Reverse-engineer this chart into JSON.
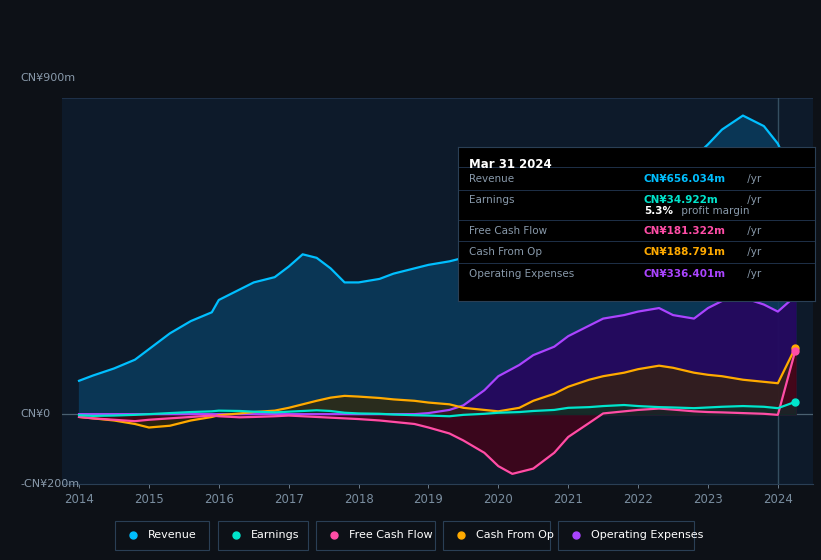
{
  "bg_color": "#0d1117",
  "plot_bg_color": "#0d1a2a",
  "grid_color": "#1e3048",
  "ylabel_top": "CN¥900m",
  "ylabel_zero": "CN¥0",
  "ylabel_bottom": "-CN¥200m",
  "ylim": [
    -200,
    900
  ],
  "xlim": [
    2013.75,
    2024.5
  ],
  "years": [
    2014,
    2015,
    2016,
    2017,
    2018,
    2019,
    2020,
    2021,
    2022,
    2023,
    2024
  ],
  "revenue_x": [
    2014.0,
    2014.2,
    2014.5,
    2014.8,
    2015.0,
    2015.3,
    2015.6,
    2015.9,
    2016.0,
    2016.3,
    2016.5,
    2016.8,
    2017.0,
    2017.2,
    2017.4,
    2017.6,
    2017.8,
    2018.0,
    2018.3,
    2018.5,
    2018.8,
    2019.0,
    2019.3,
    2019.5,
    2019.8,
    2020.0,
    2020.3,
    2020.5,
    2020.8,
    2021.0,
    2021.3,
    2021.5,
    2021.8,
    2022.0,
    2022.3,
    2022.5,
    2022.8,
    2023.0,
    2023.2,
    2023.5,
    2023.8,
    2024.0,
    2024.25
  ],
  "revenue_y": [
    95,
    110,
    130,
    155,
    185,
    230,
    265,
    290,
    325,
    355,
    375,
    390,
    420,
    455,
    445,
    415,
    375,
    375,
    385,
    400,
    415,
    425,
    435,
    445,
    455,
    470,
    482,
    500,
    520,
    550,
    580,
    610,
    640,
    668,
    690,
    710,
    730,
    768,
    810,
    850,
    820,
    770,
    656
  ],
  "earnings_x": [
    2014.0,
    2014.2,
    2014.5,
    2014.8,
    2015.0,
    2015.3,
    2015.6,
    2015.9,
    2016.0,
    2016.3,
    2016.5,
    2016.8,
    2017.0,
    2017.2,
    2017.4,
    2017.6,
    2017.8,
    2018.0,
    2018.3,
    2018.5,
    2018.8,
    2019.0,
    2019.3,
    2019.5,
    2019.8,
    2020.0,
    2020.3,
    2020.5,
    2020.8,
    2021.0,
    2021.3,
    2021.5,
    2021.8,
    2022.0,
    2022.3,
    2022.5,
    2022.8,
    2023.0,
    2023.2,
    2023.5,
    2023.8,
    2024.0,
    2024.25
  ],
  "earnings_y": [
    -3,
    -5,
    -4,
    -2,
    0,
    3,
    6,
    8,
    10,
    9,
    7,
    5,
    7,
    9,
    11,
    9,
    4,
    2,
    1,
    -1,
    -3,
    -4,
    -6,
    -2,
    1,
    4,
    6,
    9,
    12,
    18,
    20,
    23,
    26,
    23,
    20,
    19,
    17,
    19,
    21,
    23,
    21,
    17,
    35
  ],
  "fcf_x": [
    2014.0,
    2014.2,
    2014.5,
    2014.8,
    2015.0,
    2015.3,
    2015.6,
    2015.9,
    2016.0,
    2016.3,
    2016.5,
    2016.8,
    2017.0,
    2017.2,
    2017.4,
    2017.6,
    2017.8,
    2018.0,
    2018.3,
    2018.5,
    2018.8,
    2019.0,
    2019.3,
    2019.5,
    2019.8,
    2020.0,
    2020.2,
    2020.5,
    2020.8,
    2021.0,
    2021.3,
    2021.5,
    2021.8,
    2022.0,
    2022.3,
    2022.5,
    2022.8,
    2023.0,
    2023.2,
    2023.5,
    2023.8,
    2024.0,
    2024.25
  ],
  "fcf_y": [
    -8,
    -12,
    -16,
    -20,
    -16,
    -12,
    -8,
    -4,
    -6,
    -9,
    -8,
    -6,
    -4,
    -6,
    -8,
    -10,
    -12,
    -14,
    -18,
    -22,
    -28,
    -38,
    -55,
    -75,
    -110,
    -148,
    -170,
    -155,
    -110,
    -65,
    -25,
    2,
    8,
    12,
    16,
    13,
    8,
    6,
    5,
    3,
    1,
    -2,
    181
  ],
  "cfop_x": [
    2014.0,
    2014.2,
    2014.5,
    2014.8,
    2015.0,
    2015.3,
    2015.6,
    2015.9,
    2016.0,
    2016.3,
    2016.5,
    2016.8,
    2017.0,
    2017.2,
    2017.4,
    2017.6,
    2017.8,
    2018.0,
    2018.3,
    2018.5,
    2018.8,
    2019.0,
    2019.3,
    2019.5,
    2019.8,
    2020.0,
    2020.3,
    2020.5,
    2020.8,
    2021.0,
    2021.3,
    2021.5,
    2021.8,
    2022.0,
    2022.3,
    2022.5,
    2022.8,
    2023.0,
    2023.2,
    2023.5,
    2023.8,
    2024.0,
    2024.25
  ],
  "cfop_y": [
    -8,
    -12,
    -18,
    -28,
    -38,
    -33,
    -18,
    -8,
    -3,
    2,
    6,
    10,
    18,
    28,
    38,
    47,
    52,
    50,
    46,
    42,
    38,
    33,
    28,
    18,
    12,
    8,
    18,
    38,
    58,
    78,
    98,
    108,
    118,
    128,
    138,
    132,
    118,
    112,
    108,
    98,
    92,
    88,
    189
  ],
  "opex_x": [
    2014.0,
    2014.2,
    2014.5,
    2014.8,
    2015.0,
    2015.3,
    2015.6,
    2015.9,
    2016.0,
    2016.3,
    2016.5,
    2016.8,
    2017.0,
    2017.2,
    2017.4,
    2017.6,
    2017.8,
    2018.0,
    2018.3,
    2018.5,
    2018.8,
    2019.0,
    2019.3,
    2019.5,
    2019.8,
    2020.0,
    2020.3,
    2020.5,
    2020.8,
    2021.0,
    2021.3,
    2021.5,
    2021.8,
    2022.0,
    2022.3,
    2022.5,
    2022.8,
    2023.0,
    2023.2,
    2023.5,
    2023.8,
    2024.0,
    2024.25
  ],
  "opex_y": [
    0,
    0,
    0,
    0,
    0,
    0,
    0,
    0,
    0,
    0,
    0,
    0,
    0,
    0,
    0,
    0,
    0,
    0,
    0,
    0,
    0,
    3,
    12,
    25,
    68,
    108,
    140,
    168,
    192,
    222,
    252,
    272,
    282,
    292,
    302,
    282,
    272,
    302,
    322,
    332,
    312,
    292,
    336
  ],
  "revenue_color": "#00bfff",
  "earnings_color": "#00e5cc",
  "fcf_color": "#ff4da6",
  "cfop_color": "#ffaa00",
  "opex_color": "#aa44ff",
  "revenue_fill": "#0a3a5c",
  "opex_fill": "#2a0060",
  "cfop_fill": "#3a2800",
  "fcf_fill": "#4a0018",
  "earnings_fill": "#003830",
  "legend_items": [
    {
      "label": "Revenue",
      "color": "#00bfff"
    },
    {
      "label": "Earnings",
      "color": "#00e5cc"
    },
    {
      "label": "Free Cash Flow",
      "color": "#ff4da6"
    },
    {
      "label": "Cash From Op",
      "color": "#ffaa00"
    },
    {
      "label": "Operating Expenses",
      "color": "#aa44ff"
    }
  ],
  "box": {
    "date": "Mar 31 2024",
    "rows": [
      {
        "label": "Revenue",
        "value": "CN¥656.034m",
        "value_color": "#00bfff",
        "suffix": " /yr",
        "sub": null
      },
      {
        "label": "Earnings",
        "value": "CN¥34.922m",
        "value_color": "#00e5cc",
        "suffix": " /yr",
        "sub": "5.3% profit margin"
      },
      {
        "label": "Free Cash Flow",
        "value": "CN¥181.322m",
        "value_color": "#ff4da6",
        "suffix": " /yr",
        "sub": null
      },
      {
        "label": "Cash From Op",
        "value": "CN¥188.791m",
        "value_color": "#ffaa00",
        "suffix": " /yr",
        "sub": null
      },
      {
        "label": "Operating Expenses",
        "value": "CN¥336.401m",
        "value_color": "#aa44ff",
        "suffix": " /yr",
        "sub": null
      }
    ]
  }
}
